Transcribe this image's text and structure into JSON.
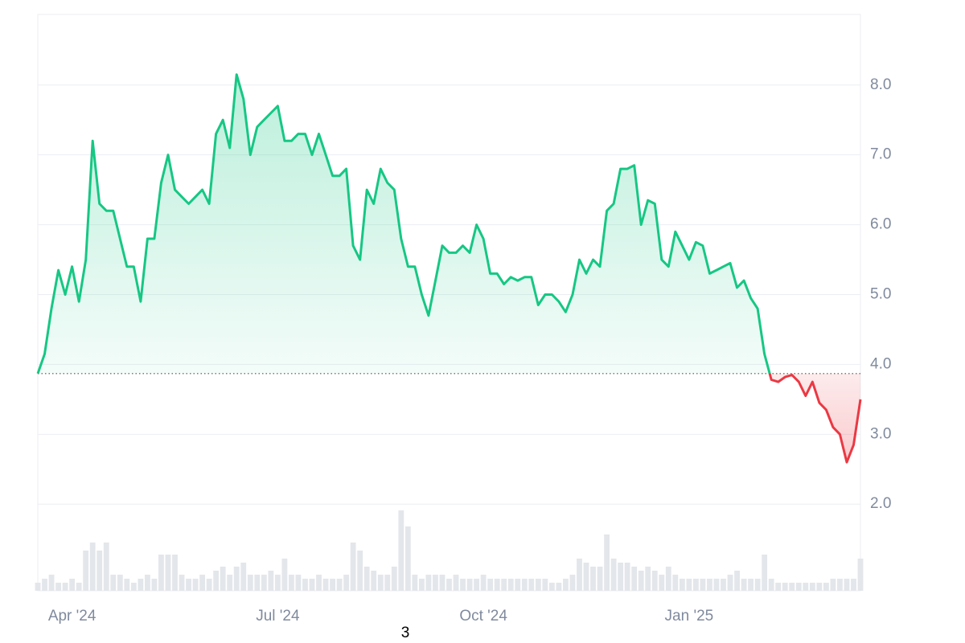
{
  "chart_data": {
    "type": "line",
    "categories": [
      null,
      null,
      null,
      null,
      null,
      "Apr '24",
      null,
      null,
      null,
      null,
      null,
      null,
      null,
      null,
      null,
      null,
      null,
      null,
      null,
      null,
      null,
      null,
      null,
      null,
      null,
      null,
      null,
      null,
      null,
      null,
      null,
      null,
      null,
      null,
      null,
      "Jul '24",
      null,
      null,
      null,
      null,
      null,
      null,
      null,
      null,
      null,
      null,
      null,
      null,
      null,
      null,
      null,
      null,
      null,
      null,
      null,
      null,
      null,
      null,
      null,
      null,
      null,
      null,
      null,
      null,
      null,
      "Oct '24",
      null,
      null,
      null,
      null,
      null,
      null,
      null,
      null,
      null,
      null,
      null,
      null,
      null,
      null,
      null,
      null,
      null,
      null,
      null,
      null,
      null,
      null,
      null,
      null,
      null,
      null,
      null,
      null,
      null,
      "Jan '25",
      null,
      null,
      null,
      null,
      null,
      null,
      null,
      null,
      null,
      null,
      null,
      null,
      null,
      null,
      null,
      null,
      null,
      null,
      null,
      null,
      null,
      null,
      null,
      null,
      null
    ],
    "values": [
      3.87,
      4.15,
      4.8,
      5.35,
      5.0,
      5.4,
      4.9,
      5.5,
      7.2,
      6.3,
      6.2,
      6.2,
      5.8,
      5.4,
      5.4,
      4.9,
      5.8,
      5.8,
      6.6,
      7.0,
      6.5,
      6.4,
      6.3,
      6.4,
      6.5,
      6.3,
      7.3,
      7.5,
      7.1,
      8.15,
      7.8,
      7.0,
      7.4,
      7.5,
      7.6,
      7.7,
      7.2,
      7.2,
      7.3,
      7.3,
      7.0,
      7.3,
      7.0,
      6.7,
      6.7,
      6.8,
      5.7,
      5.5,
      6.5,
      6.3,
      6.8,
      6.6,
      6.5,
      5.8,
      5.4,
      5.4,
      5.0,
      4.7,
      5.2,
      5.7,
      5.6,
      5.6,
      5.7,
      5.6,
      6.0,
      5.8,
      5.3,
      5.3,
      5.15,
      5.25,
      5.2,
      5.25,
      5.25,
      4.85,
      5.0,
      5.0,
      4.9,
      4.75,
      5.0,
      5.5,
      5.3,
      5.5,
      5.4,
      6.2,
      6.3,
      6.8,
      6.8,
      6.85,
      6.0,
      6.35,
      6.3,
      5.5,
      5.4,
      5.9,
      5.7,
      5.5,
      5.75,
      5.7,
      5.3,
      5.35,
      5.4,
      5.45,
      5.1,
      5.2,
      4.95,
      4.8,
      4.15,
      3.78,
      3.75,
      3.82,
      3.85,
      3.75,
      3.55,
      3.75,
      3.45,
      3.35,
      3.1,
      3.0,
      2.6,
      2.85,
      3.5
    ],
    "volume": [
      1,
      1.5,
      2,
      1,
      1,
      1.5,
      1,
      5,
      6,
      5,
      6,
      2,
      2,
      1.5,
      1,
      1.5,
      2,
      1.5,
      4.5,
      4.5,
      4.5,
      2,
      1.5,
      1.5,
      2,
      1.5,
      2.5,
      3,
      2,
      3,
      3.5,
      2,
      2,
      2,
      2.5,
      2,
      4,
      2,
      2,
      1.5,
      1.5,
      2,
      1.5,
      1.5,
      1.5,
      2,
      6,
      5,
      3,
      2.5,
      2,
      2,
      3,
      10,
      8,
      2,
      1.5,
      2,
      2,
      2,
      1.5,
      2,
      1.5,
      1.5,
      1.5,
      2,
      1.5,
      1.5,
      1.5,
      1.5,
      1.5,
      1.5,
      1.5,
      1.5,
      1.5,
      1,
      1,
      1.5,
      2,
      4,
      3.5,
      3,
      3,
      7,
      4,
      3.5,
      3.5,
      3,
      2.5,
      3,
      2.5,
      2,
      3,
      2,
      1.5,
      1.5,
      1.5,
      1.5,
      1.5,
      1.5,
      1.5,
      2,
      2.5,
      1.5,
      1.5,
      1.5,
      4.5,
      1.5,
      1,
      1,
      1,
      1,
      1,
      1,
      1,
      1,
      1.5,
      1.5,
      1.5,
      1.5,
      4
    ],
    "baseline": 3.87,
    "up_color": "#16c784",
    "down_color": "#ea3943",
    "ylim": [
      0.76,
      9.01
    ],
    "yticks": [
      {
        "value": 2,
        "label": "2.0"
      },
      {
        "value": 3,
        "label": "3.0"
      },
      {
        "value": 4,
        "label": "4.0"
      },
      {
        "value": 5,
        "label": "5.0"
      },
      {
        "value": 6,
        "label": "6.0"
      },
      {
        "value": 7,
        "label": "7.0"
      },
      {
        "value": 8,
        "label": "8.0"
      }
    ],
    "grid": true,
    "footer": "3"
  }
}
